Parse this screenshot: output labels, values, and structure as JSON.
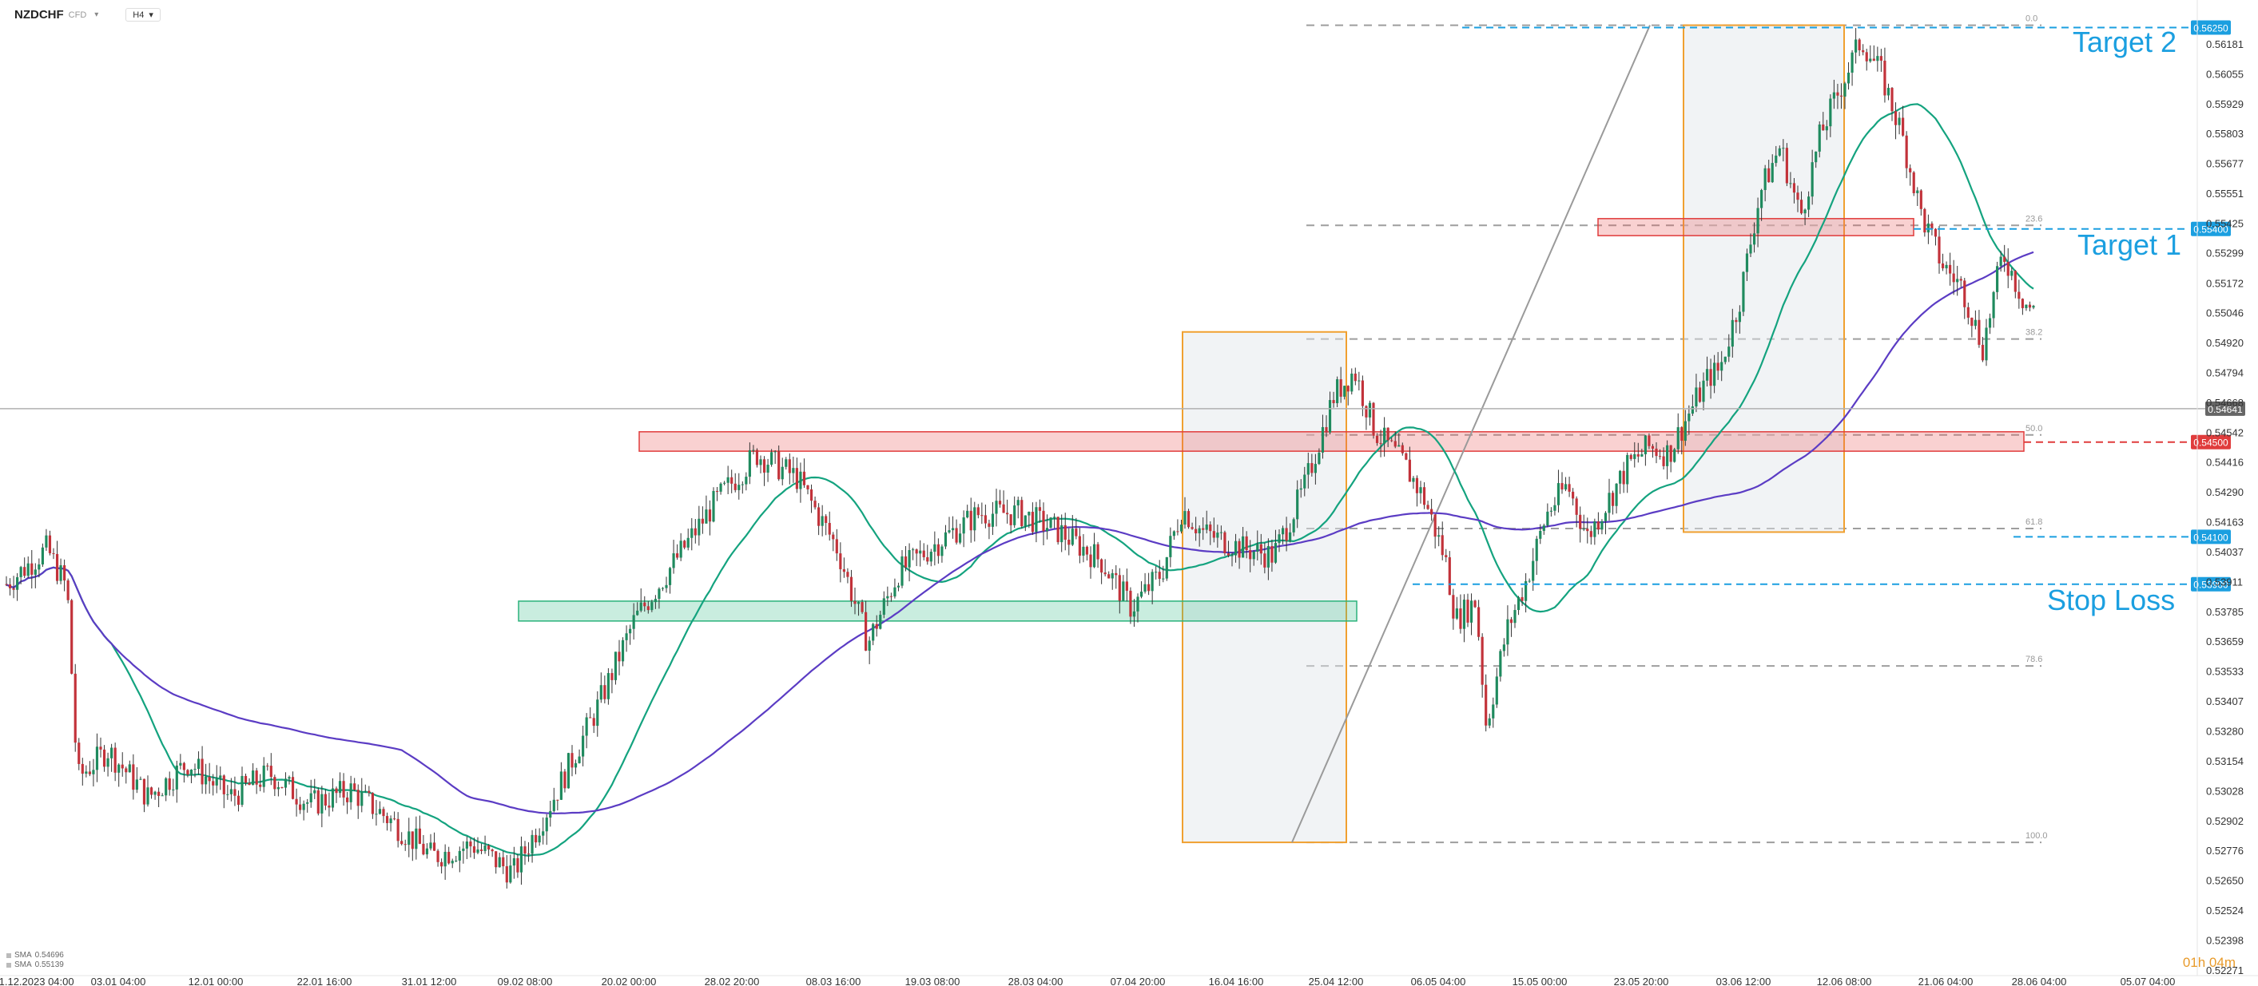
{
  "header": {
    "symbol": "NZDCHF",
    "symbol_sub": "CFD",
    "timeframe": "H4"
  },
  "indicators": [
    {
      "label": "SMA",
      "value": "0.54696",
      "color": "#14a37f"
    },
    {
      "label": "SMA",
      "value": "0.55139",
      "color": "#5b3cc4"
    }
  ],
  "timer": "01h 04m",
  "chart_data": {
    "type": "candlestick",
    "title": "NZDCHF H4",
    "y_ticks": [
      "0.56181",
      "0.56055",
      "0.55929",
      "0.55803",
      "0.55677",
      "0.55551",
      "0.55425",
      "0.55299",
      "0.55172",
      "0.55046",
      "0.54920",
      "0.54794",
      "0.54668",
      "0.54542",
      "0.54416",
      "0.54290",
      "0.54163",
      "0.54037",
      "0.53911",
      "0.53785",
      "0.53659",
      "0.53533",
      "0.53407",
      "0.53280",
      "0.53154",
      "0.53028",
      "0.52902",
      "0.52776",
      "0.52650",
      "0.52524",
      "0.52398",
      "0.52271"
    ],
    "ylim": [
      0.5224,
      0.563
    ],
    "x_ticks": [
      "21.12.2023 04:00",
      "03.01 04:00",
      "12.01 00:00",
      "22.01 16:00",
      "31.01 12:00",
      "09.02 08:00",
      "20.02 00:00",
      "28.02 20:00",
      "08.03 16:00",
      "19.03 08:00",
      "28.03 04:00",
      "07.04 20:00",
      "16.04 16:00",
      "25.04 12:00",
      "06.05 04:00",
      "15.05 00:00",
      "23.05 20:00",
      "03.06 12:00",
      "12.06 08:00",
      "21.06 04:00",
      "28.06 04:00",
      "05.07 04:00"
    ],
    "current_price": "0.54641",
    "levels": [
      {
        "price": 0.5625,
        "label": "0.56250",
        "color": "#1b9fe0",
        "text": "Target 2"
      },
      {
        "price": 0.554,
        "label": "0.55400",
        "color": "#1b9fe0",
        "text": "Target 1"
      },
      {
        "price": 0.545,
        "label": "0.54500",
        "color": "#e03c3c",
        "text": ""
      },
      {
        "price": 0.541,
        "label": "0.54100",
        "color": "#1b9fe0",
        "text": ""
      },
      {
        "price": 0.539,
        "label": "0.53900",
        "color": "#1b9fe0",
        "text": "Stop Loss"
      }
    ],
    "fibonacci": [
      {
        "level": "0.0",
        "price": 0.5626
      },
      {
        "level": "23.6",
        "price": 0.55415
      },
      {
        "level": "38.2",
        "price": 0.54935
      },
      {
        "level": "50.0",
        "price": 0.5453
      },
      {
        "level": "61.8",
        "price": 0.54135
      },
      {
        "level": "78.6",
        "price": 0.53555
      },
      {
        "level": "100.0",
        "price": 0.5281
      }
    ],
    "zones": [
      {
        "kind": "resistance",
        "price_low": 0.54475,
        "price_high": 0.5453,
        "color": "#e03c3c"
      },
      {
        "kind": "support",
        "price_low": 0.53758,
        "price_high": 0.53815,
        "color": "#2ab27b"
      },
      {
        "kind": "resistance",
        "price_low": 0.55385,
        "price_high": 0.5543,
        "color": "#e03c3c"
      }
    ],
    "boxes": [
      {
        "price_low": 0.5281,
        "price_high": 0.54965
      },
      {
        "price_low": 0.5412,
        "price_high": 0.5626
      }
    ],
    "price_path": [
      [
        0,
        0.539
      ],
      [
        0.02,
        0.5405
      ],
      [
        0.03,
        0.5388
      ],
      [
        0.035,
        0.5308
      ],
      [
        0.05,
        0.532
      ],
      [
        0.07,
        0.53
      ],
      [
        0.09,
        0.5315
      ],
      [
        0.11,
        0.53
      ],
      [
        0.13,
        0.531
      ],
      [
        0.15,
        0.5297
      ],
      [
        0.17,
        0.5303
      ],
      [
        0.19,
        0.529
      ],
      [
        0.21,
        0.5275
      ],
      [
        0.23,
        0.528
      ],
      [
        0.25,
        0.5268
      ],
      [
        0.27,
        0.53
      ],
      [
        0.29,
        0.5335
      ],
      [
        0.31,
        0.5375
      ],
      [
        0.33,
        0.54
      ],
      [
        0.35,
        0.5425
      ],
      [
        0.37,
        0.5445
      ],
      [
        0.39,
        0.5435
      ],
      [
        0.41,
        0.5405
      ],
      [
        0.425,
        0.5365
      ],
      [
        0.44,
        0.5395
      ],
      [
        0.46,
        0.5408
      ],
      [
        0.48,
        0.542
      ],
      [
        0.5,
        0.542
      ],
      [
        0.52,
        0.5412
      ],
      [
        0.54,
        0.54
      ],
      [
        0.555,
        0.538
      ],
      [
        0.57,
        0.5395
      ],
      [
        0.58,
        0.5422
      ],
      [
        0.59,
        0.5412
      ],
      [
        0.61,
        0.5405
      ],
      [
        0.625,
        0.5402
      ],
      [
        0.64,
        0.543
      ],
      [
        0.655,
        0.547
      ],
      [
        0.665,
        0.548
      ],
      [
        0.675,
        0.5455
      ],
      [
        0.69,
        0.544
      ],
      [
        0.7,
        0.5425
      ],
      [
        0.71,
        0.54
      ],
      [
        0.715,
        0.5375
      ],
      [
        0.725,
        0.5383
      ],
      [
        0.73,
        0.533
      ],
      [
        0.74,
        0.537
      ],
      [
        0.75,
        0.5392
      ],
      [
        0.76,
        0.542
      ],
      [
        0.77,
        0.5432
      ],
      [
        0.78,
        0.541
      ],
      [
        0.79,
        0.5425
      ],
      [
        0.8,
        0.544
      ],
      [
        0.81,
        0.5448
      ],
      [
        0.82,
        0.5445
      ],
      [
        0.83,
        0.5462
      ],
      [
        0.84,
        0.5478
      ],
      [
        0.845,
        0.548
      ],
      [
        0.855,
        0.551
      ],
      [
        0.865,
        0.5555
      ],
      [
        0.875,
        0.5575
      ],
      [
        0.885,
        0.5545
      ],
      [
        0.895,
        0.558
      ],
      [
        0.905,
        0.56
      ],
      [
        0.915,
        0.562
      ],
      [
        0.925,
        0.5605
      ],
      [
        0.935,
        0.558
      ],
      [
        0.945,
        0.5545
      ],
      [
        0.955,
        0.5525
      ],
      [
        0.965,
        0.5515
      ],
      [
        0.975,
        0.549
      ],
      [
        0.985,
        0.553
      ],
      [
        0.995,
        0.551
      ],
      [
        1.0,
        0.5505
      ]
    ]
  }
}
